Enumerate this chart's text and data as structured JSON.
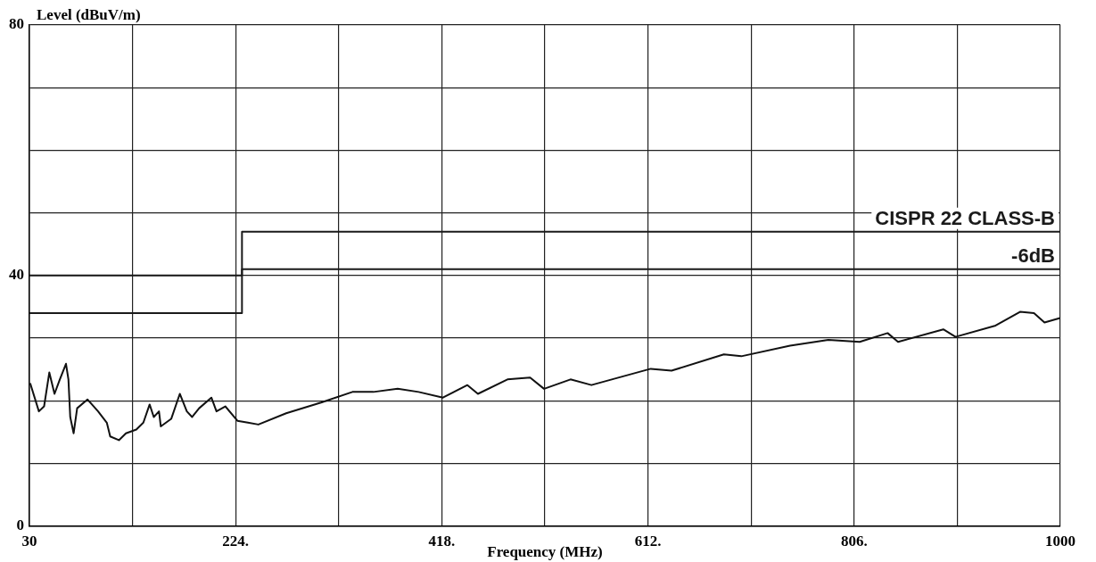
{
  "chart_data": {
    "type": "line",
    "xlabel": "Frequency (MHz)",
    "ylabel": "Level (dBuV/m)",
    "xlim": [
      30,
      1000
    ],
    "ylim": [
      0,
      80
    ],
    "xticks": [
      30,
      {
        "value": 127,
        "label": null
      },
      {
        "value": 224,
        "label": "224."
      },
      {
        "value": 321,
        "label": null
      },
      {
        "value": 418,
        "label": "418."
      },
      {
        "value": 515,
        "label": null
      },
      {
        "value": 612,
        "label": "612."
      },
      {
        "value": 709,
        "label": null
      },
      {
        "value": 806,
        "label": "806."
      },
      {
        "value": 903,
        "label": null
      },
      1000
    ],
    "yticks": [
      0,
      {
        "value": 10,
        "label": null
      },
      {
        "value": 20,
        "label": null
      },
      {
        "value": 30,
        "label": null
      },
      40,
      {
        "value": 50,
        "label": null
      },
      {
        "value": 60,
        "label": null
      },
      {
        "value": 70,
        "label": null
      },
      80
    ],
    "grid": true,
    "legend": false,
    "marker": "none",
    "line_style": "solid",
    "series": [
      {
        "name": "CISPR 22 CLASS-B",
        "type": "step",
        "color": "#1a1a1a",
        "x": [
          30,
          230,
          1000
        ],
        "values": [
          40,
          47,
          47
        ]
      },
      {
        "name": "-6dB",
        "type": "step",
        "color": "#1a1a1a",
        "x": [
          30,
          230,
          1000
        ],
        "values": [
          34,
          41,
          41
        ]
      },
      {
        "type": "line",
        "color": "#111111",
        "x": [
          30.7,
          38.9,
          43.8,
          48.7,
          53.6,
          58.6,
          64.4,
          66.7,
          68.4,
          71.6,
          74.9,
          84.7,
          94.6,
          102.8,
          106,
          114.2,
          120.8,
          130.6,
          137.2,
          143.1,
          147,
          151.9,
          153.6,
          163.4,
          171.5,
          178.1,
          183.1,
          189.7,
          201.2,
          206,
          214.3,
          225.7,
          235.6,
          245.4,
          271.6,
          304.4,
          333.9,
          353.6,
          376.5,
          396.2,
          419.1,
          442.1,
          452,
          479.8,
          501.1,
          514.2,
          539.1,
          558.8,
          614.6,
          634.2,
          683.4,
          699.8,
          745.7,
          781.7,
          811.2,
          837.5,
          847.3,
          889.9,
          901.4,
          939.1,
          962.1,
          975.2,
          985.1,
          999.8
        ],
        "values": [
          22.8,
          18.3,
          19.1,
          24.5,
          21.1,
          23.4,
          25.9,
          23.4,
          17.4,
          14.8,
          18.8,
          20.2,
          18.3,
          16.5,
          14.3,
          13.7,
          14.8,
          15.4,
          16.5,
          19.4,
          17.4,
          18.3,
          15.9,
          17.1,
          21.1,
          18.3,
          17.4,
          18.8,
          20.5,
          18.3,
          19.1,
          16.8,
          16.5,
          16.2,
          18.0,
          19.7,
          21.4,
          21.4,
          21.9,
          21.4,
          20.5,
          22.5,
          21.1,
          23.4,
          23.7,
          21.9,
          23.4,
          22.5,
          25.1,
          24.8,
          27.4,
          27.1,
          28.8,
          29.7,
          29.4,
          30.8,
          29.4,
          31.4,
          30.2,
          32,
          34.2,
          34.0,
          32.5,
          33.2
        ]
      }
    ]
  }
}
